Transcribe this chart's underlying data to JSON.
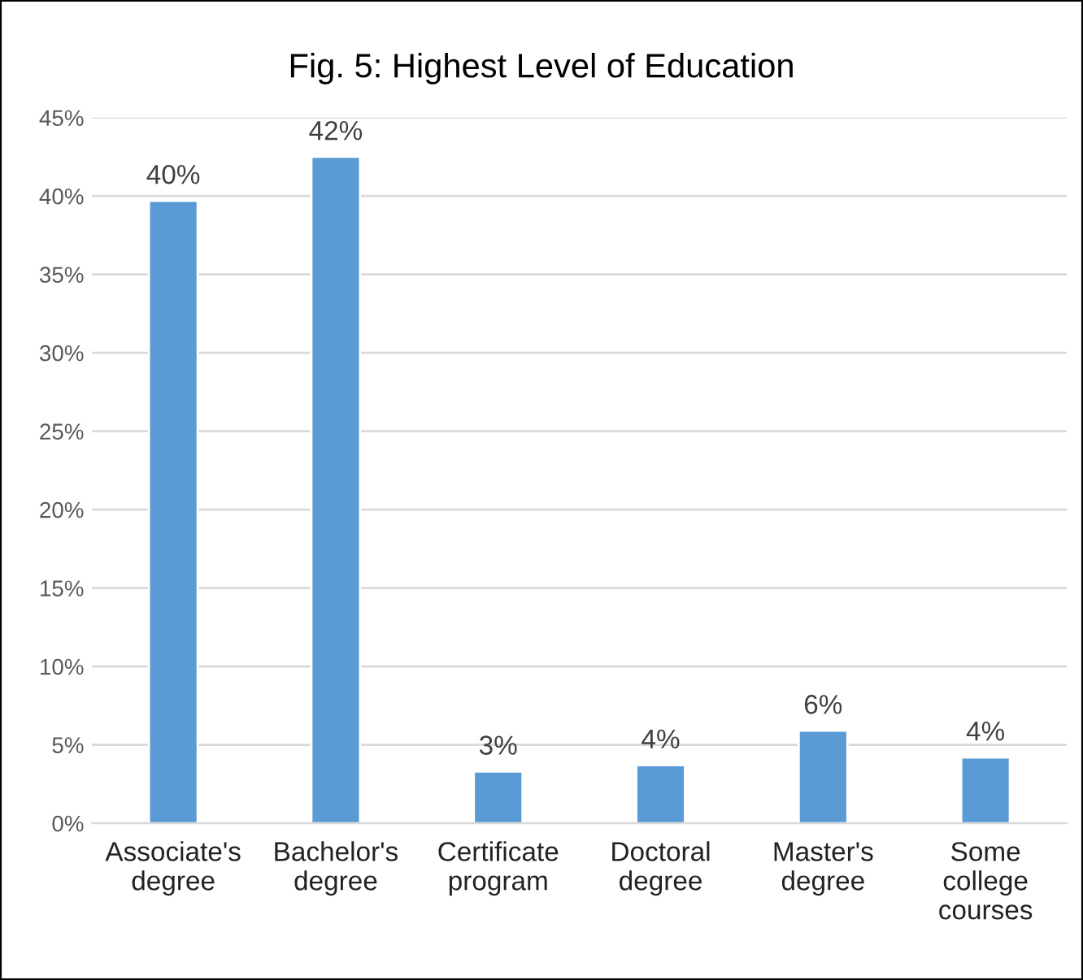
{
  "chart_data": {
    "type": "bar",
    "title": "Fig. 5: Highest Level of Education",
    "categories": [
      "Associate's degree",
      "Bachelor's degree",
      "Certificate program",
      "Doctoral degree",
      "Master's degree",
      "Some college courses"
    ],
    "values": [
      39.7,
      42.5,
      3.3,
      3.7,
      5.9,
      4.2
    ],
    "value_labels": [
      "40%",
      "42%",
      "3%",
      "4%",
      "6%",
      "4%"
    ],
    "color": "#5b9bd5",
    "ylim": [
      0,
      45
    ],
    "yticks": [
      {
        "value": 0,
        "label": "0%"
      },
      {
        "value": 5,
        "label": "5%"
      },
      {
        "value": 10,
        "label": "10%"
      },
      {
        "value": 15,
        "label": "15%"
      },
      {
        "value": 20,
        "label": "20%"
      },
      {
        "value": 25,
        "label": "25%"
      },
      {
        "value": 30,
        "label": "30%"
      },
      {
        "value": 35,
        "label": "35%"
      },
      {
        "value": 40,
        "label": "40%"
      },
      {
        "value": 45,
        "label": "45%"
      }
    ],
    "grid": "y"
  }
}
